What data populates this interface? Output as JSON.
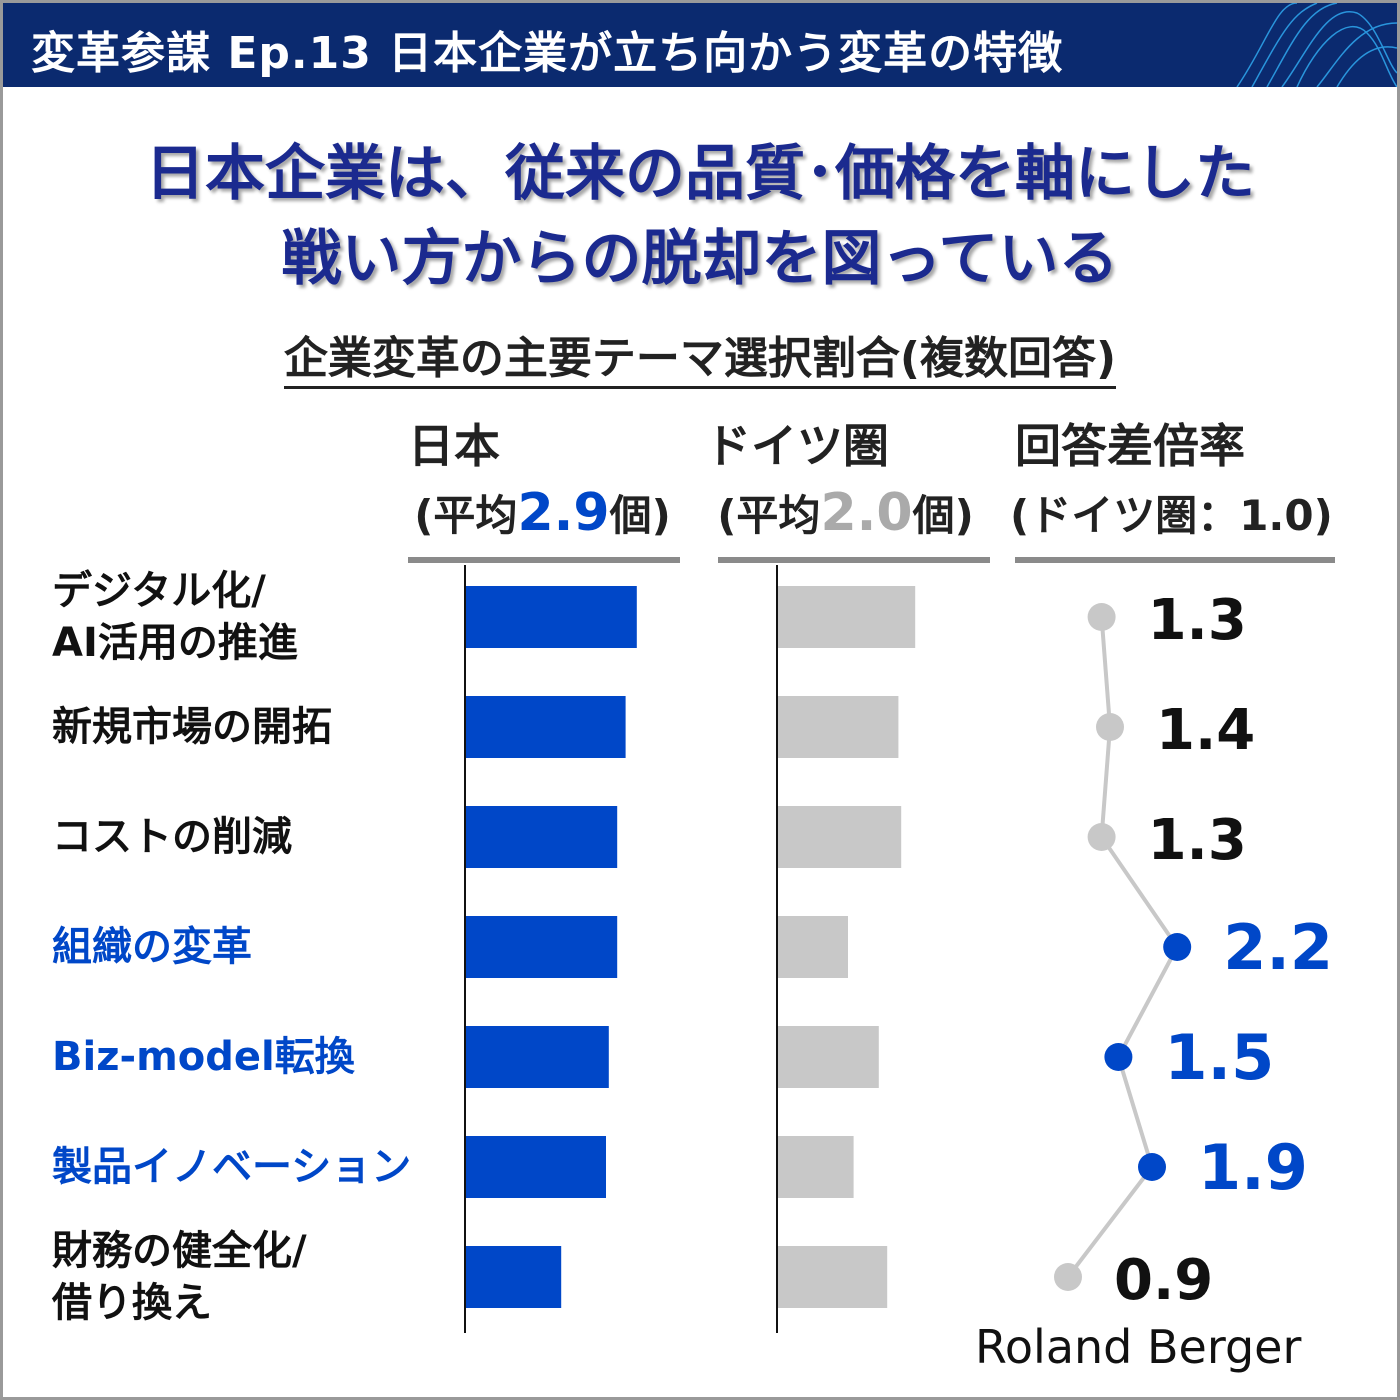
{
  "header": {
    "title": "変革参謀 Ep.13 日本企業が立ち向かう変革の特徴"
  },
  "headline": {
    "line1": "日本企業は、従来の品質･価格を軸にした",
    "line2": "戦い方からの脱却を図っている"
  },
  "chart_data": {
    "type": "bar",
    "title": "企業変革の主要テーマ選択割合(複数回答)",
    "categories": [
      "デジタル化/\nAI活用の推進",
      "新規市場の開拓",
      "コストの削減",
      "組織の変革",
      "Biz-model転換",
      "製品イノベーション",
      "財務の健全化/\n借り換え"
    ],
    "highlighted_categories": [
      "組織の変革",
      "Biz-model転換",
      "製品イノベーション"
    ],
    "series": [
      {
        "name": "日本",
        "subtitle_prefix": "(平均",
        "average": "2.9",
        "subtitle_suffix": "個)",
        "color": "#0047c8",
        "values": [
          61,
          57,
          54,
          54,
          51,
          50,
          34
        ]
      },
      {
        "name": "ドイツ圏",
        "subtitle_prefix": "(平均",
        "average": "2.0",
        "subtitle_suffix": "個)",
        "color": "#c8c8c8",
        "values": [
          49,
          43,
          44,
          25,
          36,
          27,
          39
        ]
      }
    ],
    "ratio": {
      "name": "回答差倍率",
      "subtitle": "(ドイツ圏：1.0)",
      "type": "line",
      "values": [
        1.3,
        1.4,
        1.3,
        2.2,
        1.5,
        1.9,
        0.9
      ],
      "labels": [
        "1.3",
        "1.4",
        "1.3",
        "2.2",
        "1.5",
        "1.9",
        "0.9"
      ]
    },
    "colors": {
      "highlight": "#0047c8",
      "normal_dot": "#c8c8c8",
      "line": "#c8c8c8"
    },
    "grid": false
  },
  "credit": "Roland Berger"
}
